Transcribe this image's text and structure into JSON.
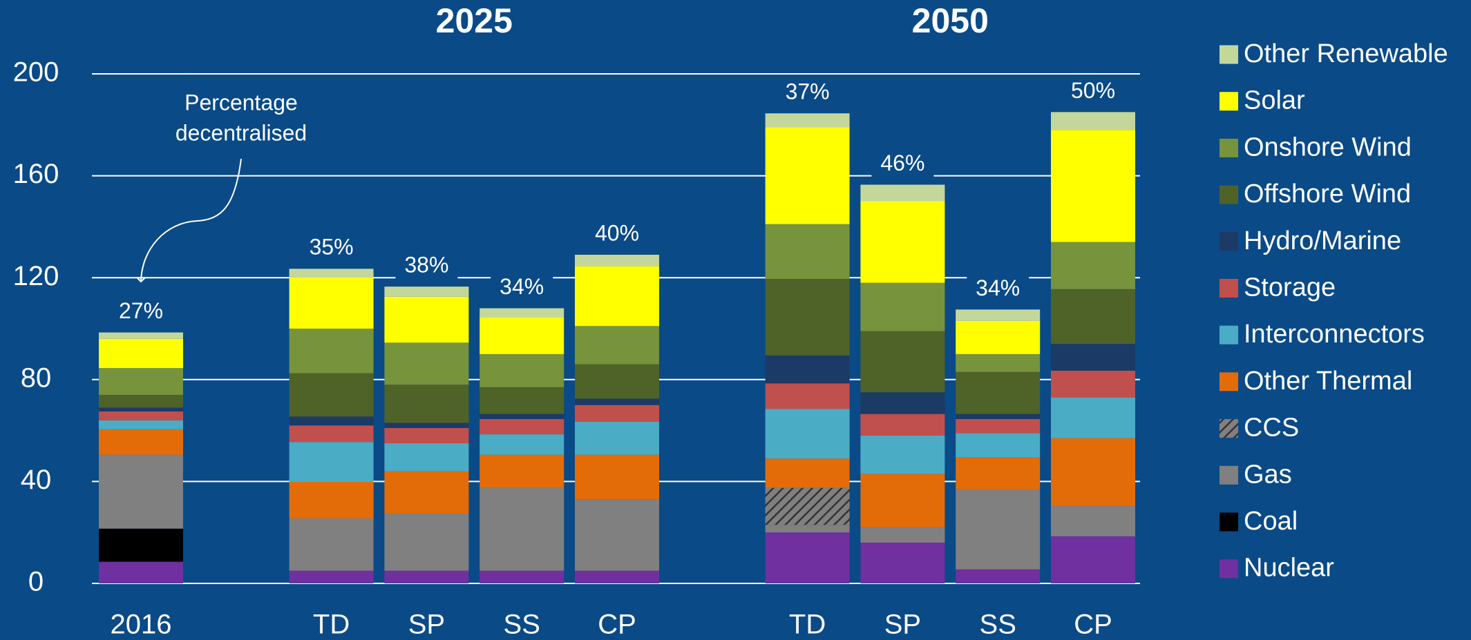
{
  "chart_data": {
    "type": "stacked-bar",
    "group_labels": [
      "2025",
      "2050"
    ],
    "categories": [
      "2016",
      null,
      "TD",
      "SP",
      "SS",
      "CP",
      null,
      "TD",
      "SP",
      "SS",
      "CP"
    ],
    "ylim": [
      0,
      200
    ],
    "yticks": [
      0,
      40,
      80,
      120,
      160,
      200
    ],
    "grid": true,
    "legend": "right",
    "series": [
      {
        "name": "Nuclear",
        "color": "#7030a0",
        "values": [
          8.5,
          null,
          5,
          5,
          5,
          5,
          null,
          20,
          16,
          5.5,
          18.5
        ]
      },
      {
        "name": "Coal",
        "color": "#000000",
        "values": [
          13,
          null,
          0,
          0,
          0,
          0,
          null,
          0,
          0,
          0,
          0
        ]
      },
      {
        "name": "Gas",
        "color": "#808080",
        "values": [
          29,
          null,
          20.5,
          22.5,
          32.5,
          28,
          null,
          3,
          6,
          31.5,
          12
        ]
      },
      {
        "name": "CCS",
        "color": "#808080",
        "hatch": true,
        "values": [
          0,
          null,
          0,
          0,
          0,
          0,
          null,
          14.5,
          0,
          0,
          0
        ]
      },
      {
        "name": "Other Thermal",
        "color": "#e36c09",
        "values": [
          10,
          null,
          14.5,
          16.5,
          13,
          17.5,
          null,
          11.5,
          21,
          12.5,
          26.5
        ]
      },
      {
        "name": "Interconnectors",
        "color": "#4bacc6",
        "values": [
          3.5,
          null,
          15.5,
          11,
          8,
          13,
          null,
          19.5,
          15,
          9.5,
          16
        ]
      },
      {
        "name": "Storage",
        "color": "#c0504d",
        "values": [
          3.5,
          null,
          6.5,
          6,
          6,
          6.5,
          null,
          10,
          8.5,
          5.5,
          10.5
        ]
      },
      {
        "name": "Hydro/Marine",
        "color": "#1c3a66",
        "values": [
          1.5,
          null,
          3.5,
          2,
          2,
          2.5,
          null,
          11,
          8.5,
          2,
          10.5
        ]
      },
      {
        "name": "Offshore Wind",
        "color": "#4f6228",
        "values": [
          5,
          null,
          17,
          15,
          10.5,
          13.5,
          null,
          30,
          24,
          16.5,
          21.5
        ]
      },
      {
        "name": "Onshore Wind",
        "color": "#77933c",
        "values": [
          10.5,
          null,
          17.5,
          16.5,
          13,
          15,
          null,
          21.5,
          19,
          7,
          18.5
        ]
      },
      {
        "name": "Solar",
        "color": "#ffff00",
        "values": [
          11.5,
          null,
          20,
          18,
          14.5,
          23.5,
          null,
          38,
          32,
          13,
          44
        ]
      },
      {
        "name": "Other Renewable",
        "color": "#c4d79b",
        "values": [
          2.5,
          null,
          3.5,
          4,
          3.5,
          4.5,
          null,
          5.5,
          6.5,
          4.5,
          7
        ]
      }
    ],
    "annotation": {
      "text": [
        "Percentage",
        "decentralised"
      ],
      "values": [
        27,
        null,
        35,
        38,
        34,
        40,
        null,
        37,
        46,
        34,
        50
      ],
      "value_labels": [
        "27%",
        null,
        "35%",
        "38%",
        "34%",
        "40%",
        null,
        "37%",
        "46%",
        "34%",
        "50%"
      ]
    }
  }
}
